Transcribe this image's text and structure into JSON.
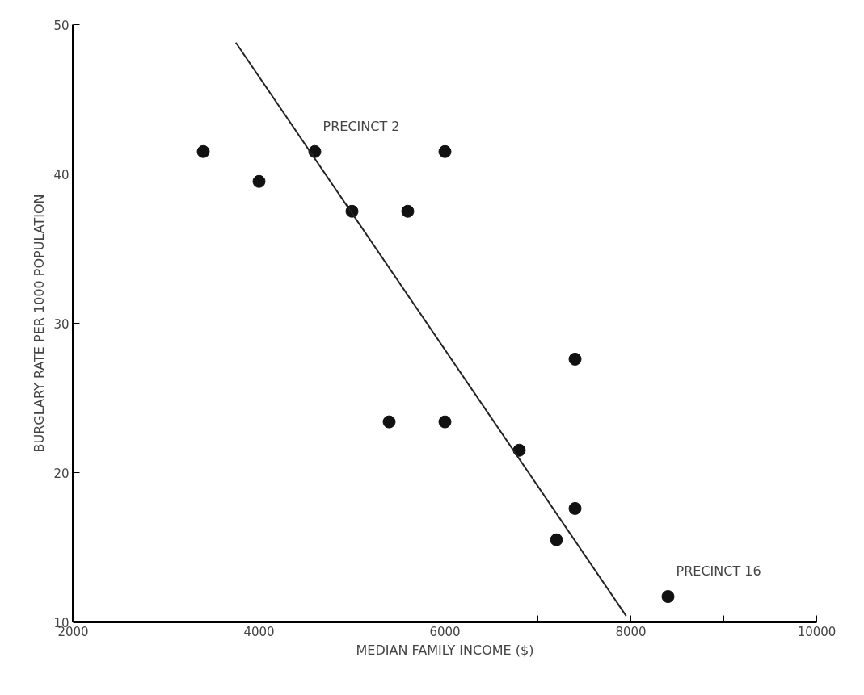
{
  "chart_data": {
    "type": "scatter",
    "xlabel": "MEDIAN FAMILY INCOME ($)",
    "ylabel": "BURGLARY RATE PER 1000 POPULATION",
    "xlim": [
      2000,
      10000
    ],
    "ylim": [
      10,
      50
    ],
    "xticks": [
      2000,
      {
        "value": 3000,
        "label": null
      },
      4000,
      {
        "value": 5000,
        "label": null
      },
      6000,
      {
        "value": 7000,
        "label": null
      },
      8000,
      {
        "value": 9000,
        "label": null
      },
      10000
    ],
    "yticks": [
      10,
      20,
      30,
      40,
      50
    ],
    "grid": false,
    "marker": "circle",
    "series": [
      {
        "color": "#111111",
        "x": [
          3400,
          4000,
          4600,
          5000,
          5600,
          6000,
          7400,
          5400,
          6000,
          6800,
          7400,
          7200,
          8400
        ],
        "values": [
          41.5,
          39.5,
          41.5,
          37.5,
          37.5,
          41.5,
          27.6,
          23.4,
          23.4,
          21.5,
          17.6,
          15.5,
          11.7
        ]
      },
      {
        "type": "line",
        "color": "#222222",
        "x": [
          3750,
          7950
        ],
        "values": [
          48.8,
          10.4
        ],
        "line_style": "solid",
        "marker": "none"
      }
    ],
    "annotations": [
      {
        "text": "PRECINCT 2",
        "x": 4600,
        "y": 41.5
      },
      {
        "text": "PRECINCT 16",
        "x": 8400,
        "y": 11.7
      }
    ]
  }
}
